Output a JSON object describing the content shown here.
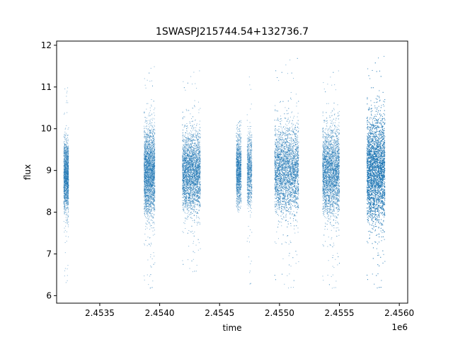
{
  "chart_data": {
    "type": "scatter",
    "title": "1SWASPJ215744.54+132736.7",
    "xlabel": "time",
    "ylabel": "flux",
    "x_offset_label": "1e6",
    "xlim": [
      2453140,
      2456070
    ],
    "ylim": [
      5.82,
      12.1
    ],
    "x_ticks": [
      2453500,
      2454000,
      2454500,
      2455000,
      2455500,
      2456000
    ],
    "x_tick_labels": [
      "2.4535",
      "2.4540",
      "2.4545",
      "2.4550",
      "2.4555",
      "2.4560"
    ],
    "y_ticks": [
      6,
      7,
      8,
      9,
      10,
      11,
      12
    ],
    "y_tick_labels": [
      "6",
      "7",
      "8",
      "9",
      "10",
      "11",
      "12"
    ],
    "grid": false,
    "marker_color": "#1f77b4",
    "observing_seasons": [
      {
        "start": 2453200,
        "end": 2453240,
        "center": 8.85,
        "spread": 0.42,
        "min": 6.3,
        "max": 11.1,
        "points": 1500
      },
      {
        "start": 2453870,
        "end": 2453960,
        "center": 8.95,
        "spread": 0.5,
        "min": 6.1,
        "max": 11.5,
        "points": 2800
      },
      {
        "start": 2454190,
        "end": 2454340,
        "center": 8.95,
        "spread": 0.45,
        "min": 6.5,
        "max": 11.4,
        "points": 3500
      },
      {
        "start": 2454640,
        "end": 2454680,
        "center": 9.0,
        "spread": 0.42,
        "min": 8.0,
        "max": 10.2,
        "points": 1200
      },
      {
        "start": 2454730,
        "end": 2454770,
        "center": 9.0,
        "spread": 0.42,
        "min": 6.2,
        "max": 11.4,
        "points": 800
      },
      {
        "start": 2454960,
        "end": 2455160,
        "center": 9.0,
        "spread": 0.5,
        "min": 6.1,
        "max": 11.7,
        "points": 3800
      },
      {
        "start": 2455360,
        "end": 2455500,
        "center": 8.95,
        "spread": 0.5,
        "min": 6.1,
        "max": 11.4,
        "points": 3200
      },
      {
        "start": 2455730,
        "end": 2455880,
        "center": 9.0,
        "spread": 0.6,
        "min": 6.1,
        "max": 11.75,
        "points": 7000
      }
    ]
  }
}
